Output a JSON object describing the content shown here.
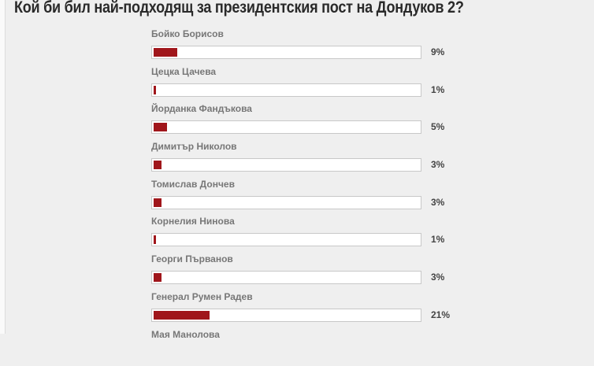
{
  "title": "Кой би бил най-подходящ за президентския пост на Дондуков 2?",
  "bar_color": "#a0161b",
  "options": [
    {
      "label": "Бойко Борисов",
      "percent_text": "9%",
      "percent": 9
    },
    {
      "label": "Цецка Цачева",
      "percent_text": "1%",
      "percent": 1
    },
    {
      "label": "Йорданка Фандъкова",
      "percent_text": "5%",
      "percent": 5
    },
    {
      "label": "Димитър Николов",
      "percent_text": "3%",
      "percent": 3
    },
    {
      "label": "Томислав Дончев",
      "percent_text": "3%",
      "percent": 3
    },
    {
      "label": "Корнелия Нинова",
      "percent_text": "1%",
      "percent": 1
    },
    {
      "label": "Георги Първанов",
      "percent_text": "3%",
      "percent": 3
    },
    {
      "label": "Генерал Румен Радев",
      "percent_text": "21%",
      "percent": 21
    },
    {
      "label": "Мая Манолова",
      "percent_text": null,
      "percent": null
    }
  ]
}
